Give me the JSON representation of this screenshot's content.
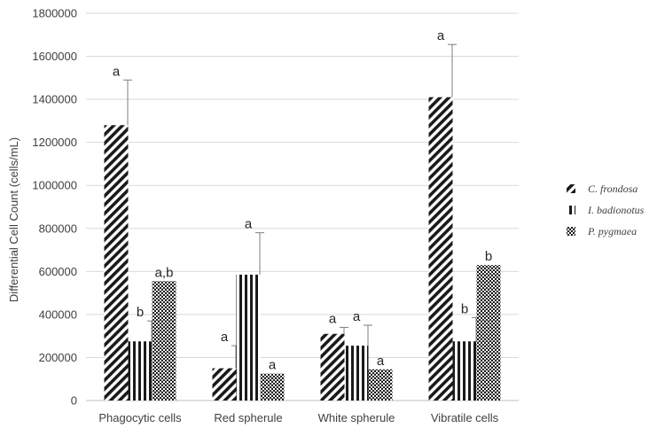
{
  "chart_data": {
    "type": "bar",
    "title": "",
    "ylabel": "Differential Cell Count (cells/mL)",
    "xlabel": "",
    "ylim": [
      0,
      1800000
    ],
    "ytick_step": 200000,
    "yticks": [
      "0",
      "200000",
      "400000",
      "600000",
      "800000",
      "1000000",
      "1200000",
      "1400000",
      "1600000",
      "1800000"
    ],
    "grid": "horizontal",
    "legend_position": "right",
    "categories": [
      "Phagocytic cells",
      "Red spherule",
      "White spherule",
      "Vibratile cells"
    ],
    "series": [
      {
        "name": "C. frondosa",
        "pattern": "diagonal",
        "values": [
          1280000,
          150000,
          310000,
          1410000
        ],
        "errors": [
          210000,
          105000,
          30000,
          245000
        ],
        "sig_labels": [
          "a",
          "a",
          "a",
          "a"
        ]
      },
      {
        "name": "I. badionotus",
        "pattern": "vertical",
        "values": [
          275000,
          585000,
          255000,
          275000
        ],
        "errors": [
          95000,
          195000,
          95000,
          110000
        ],
        "sig_labels": [
          "b",
          "a",
          "a",
          "b"
        ]
      },
      {
        "name": "P. pygmaea",
        "pattern": "checker",
        "values": [
          555000,
          125000,
          145000,
          630000
        ],
        "errors": [
          0,
          0,
          0,
          0
        ],
        "sig_labels": [
          "a,b",
          "a",
          "a",
          "b"
        ]
      }
    ]
  }
}
